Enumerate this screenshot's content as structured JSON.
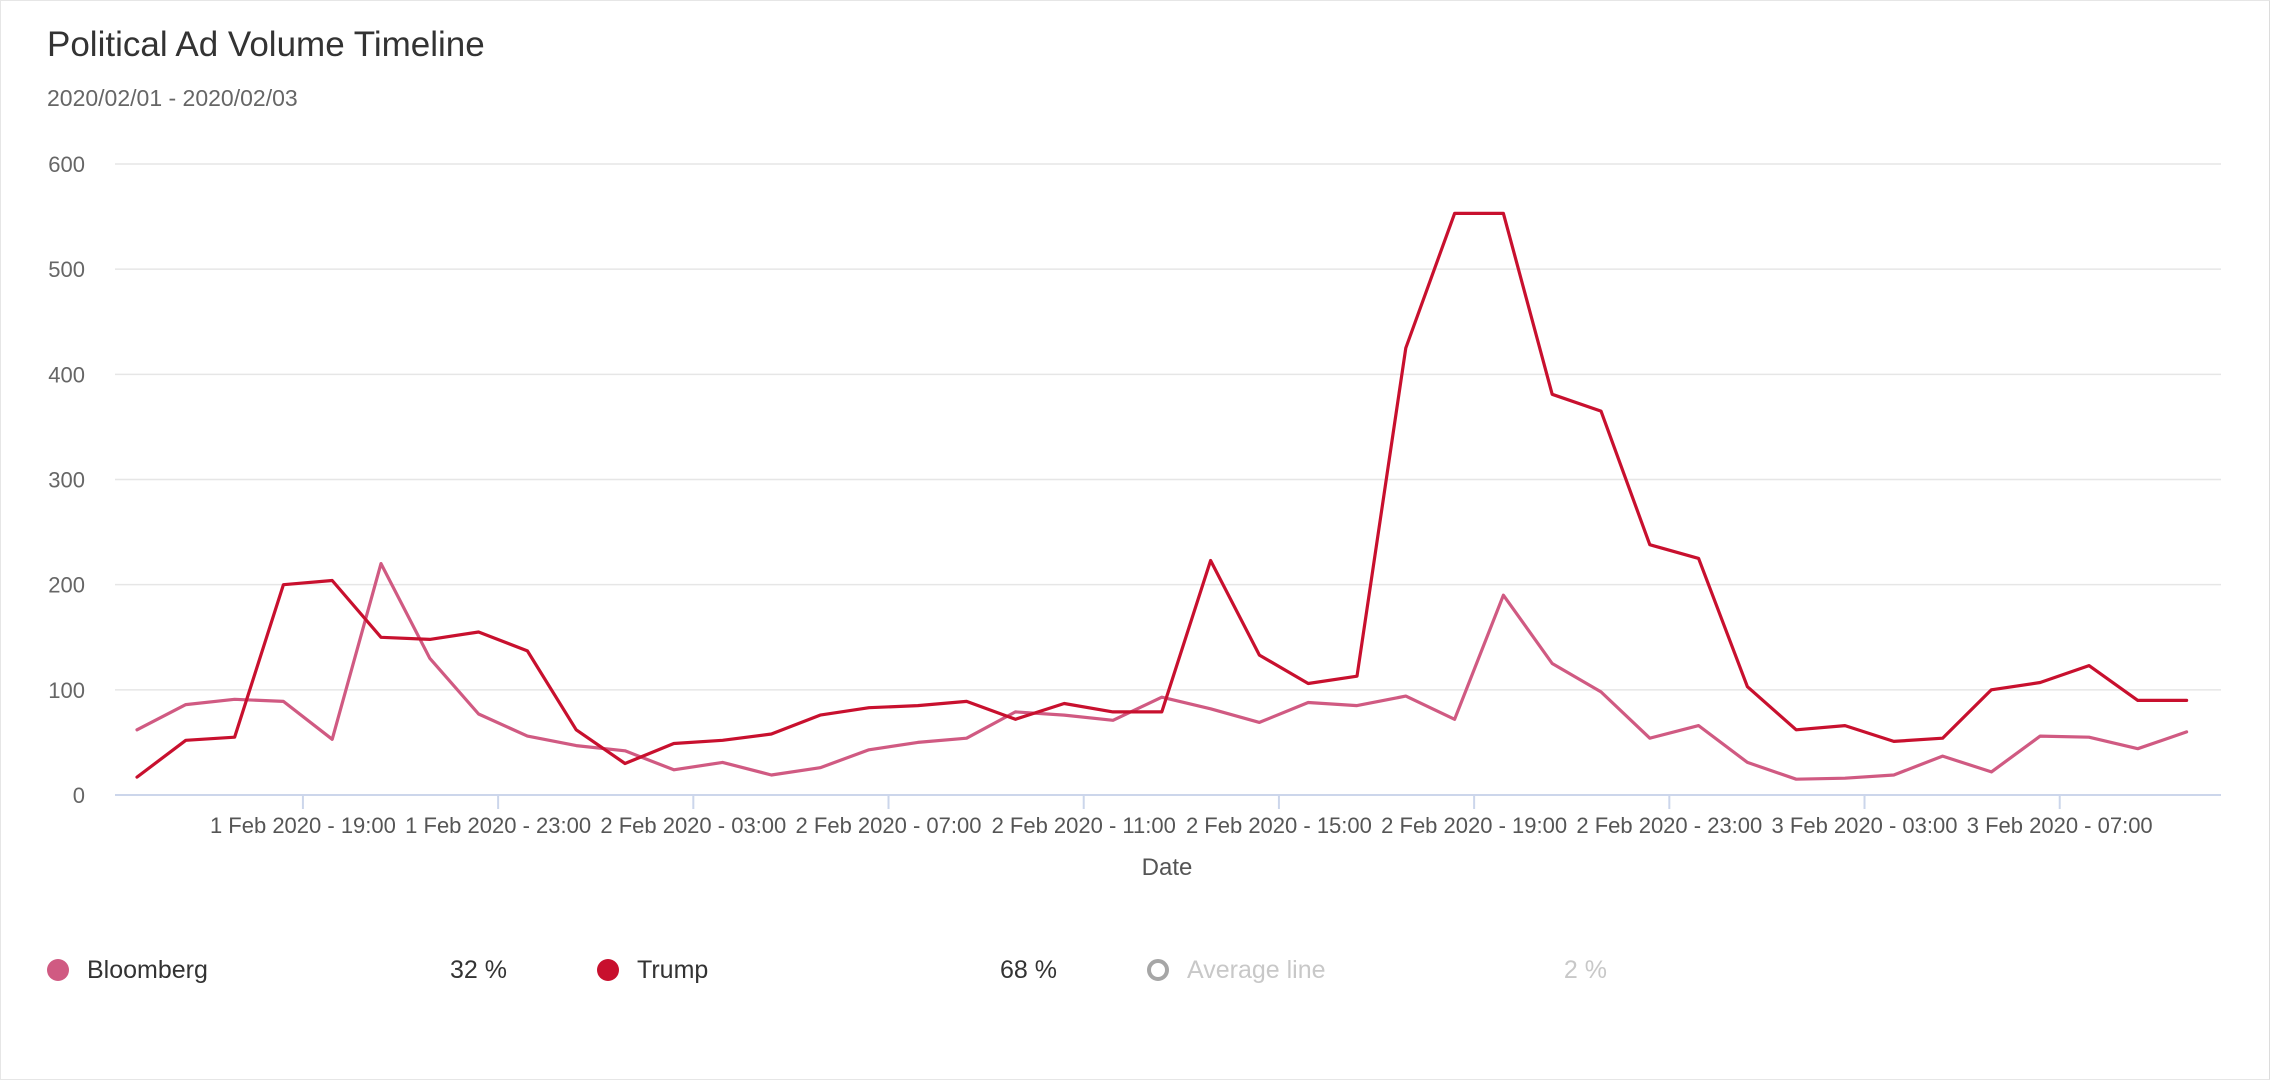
{
  "header": {
    "title": "Political Ad Volume Timeline",
    "subtitle": "2020/02/01 - 2020/02/03"
  },
  "legend": [
    {
      "label": "Bloomberg",
      "percent": "32 %",
      "color": "#d05a82",
      "active": true
    },
    {
      "label": "Trump",
      "percent": "68 %",
      "color": "#c8102e",
      "active": true
    },
    {
      "label": "Average line",
      "percent": "2 %",
      "color": "#a6a6a6",
      "active": false
    }
  ],
  "chart_data": {
    "type": "line",
    "xlabel": "Date",
    "ylabel": "",
    "ylim": [
      0,
      600
    ],
    "yticks": [
      0,
      100,
      200,
      300,
      400,
      500,
      600
    ],
    "grid": true,
    "legend_position": "bottom-left",
    "x_tick_labels": [
      "1 Feb 2020 - 19:00",
      "1 Feb 2020 - 23:00",
      "2 Feb 2020 - 03:00",
      "2 Feb 2020 - 07:00",
      "2 Feb 2020 - 11:00",
      "2 Feb 2020 - 15:00",
      "2 Feb 2020 - 19:00",
      "2 Feb 2020 - 23:00",
      "3 Feb 2020 - 03:00",
      "3 Feb 2020 - 07:00"
    ],
    "x_start": "1 Feb 2020 - 15:37",
    "x_step_hours": 1,
    "series": [
      {
        "name": "Bloomberg",
        "color": "#d05a82",
        "values": [
          62,
          86,
          91,
          89,
          53,
          220,
          130,
          77,
          56,
          47,
          42,
          24,
          31,
          19,
          26,
          43,
          50,
          54,
          79,
          76,
          71,
          93,
          82,
          69,
          88,
          85,
          94,
          72,
          190,
          125,
          98,
          54,
          66,
          31,
          15,
          16,
          19,
          37,
          22,
          56,
          55,
          44,
          60
        ]
      },
      {
        "name": "Trump",
        "color": "#c8102e",
        "values": [
          17,
          52,
          55,
          200,
          204,
          150,
          148,
          155,
          137,
          62,
          30,
          49,
          52,
          58,
          76,
          83,
          85,
          89,
          72,
          87,
          79,
          79,
          223,
          133,
          106,
          113,
          425,
          553,
          553,
          381,
          365,
          238,
          225,
          103,
          62,
          66,
          51,
          54,
          100,
          107,
          123,
          90,
          90
        ]
      }
    ]
  }
}
